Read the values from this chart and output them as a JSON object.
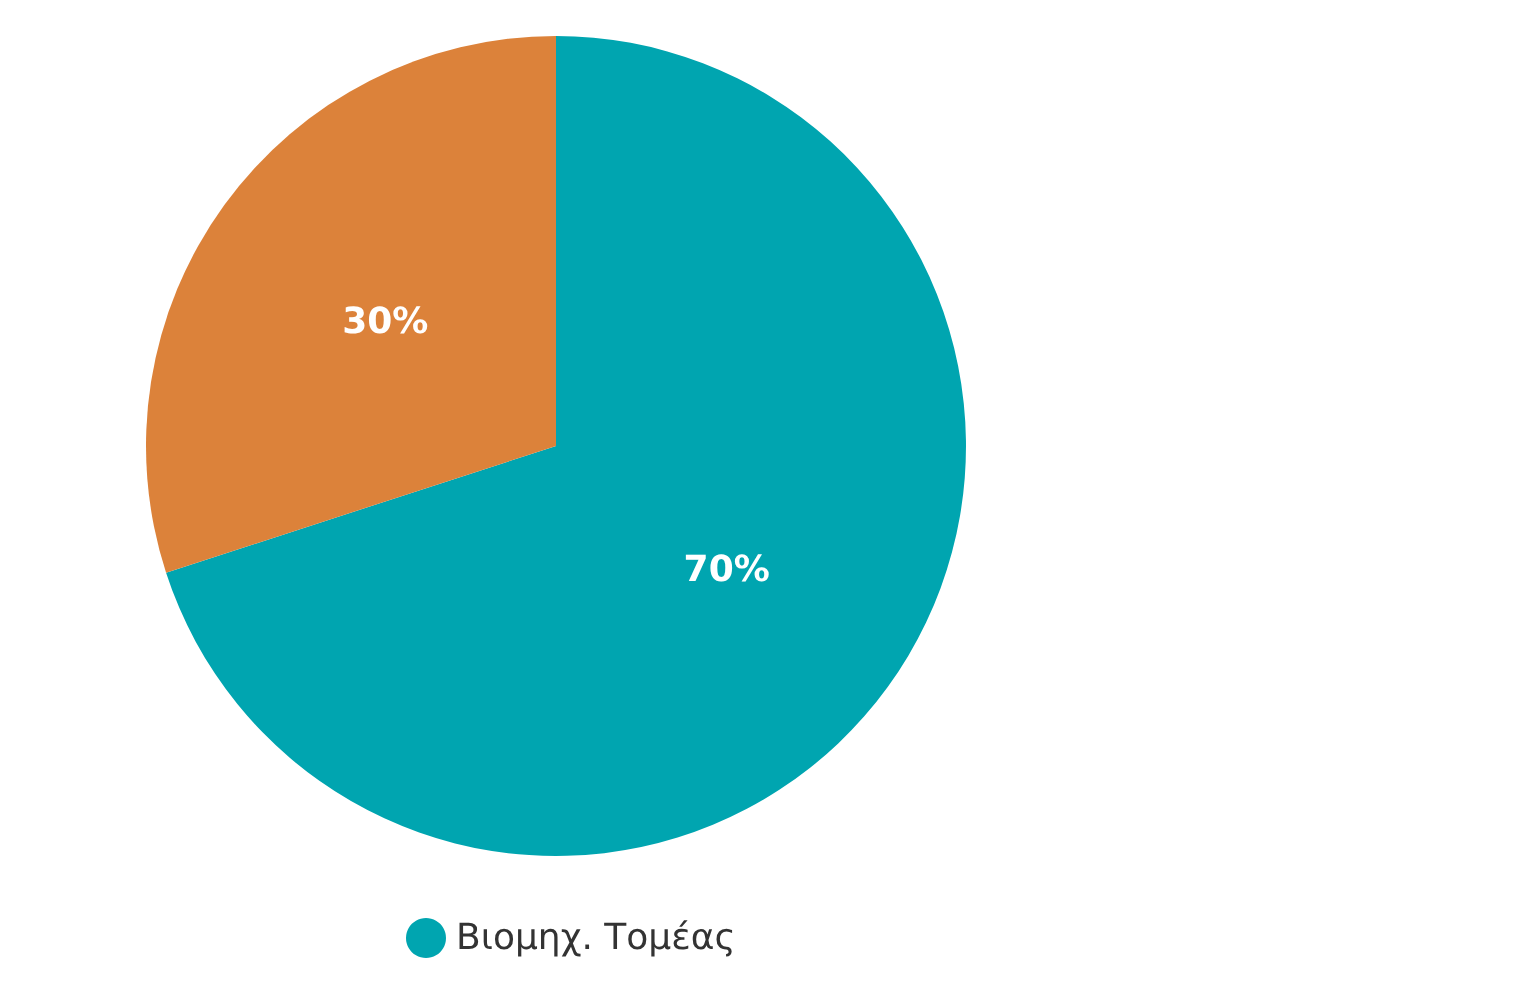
{
  "chart_data": {
    "type": "pie",
    "categories": [
      "Βιομηχ. Τομέας",
      null
    ],
    "values": [
      70,
      30
    ],
    "colors": [
      "#00a5b0",
      "#dc823a"
    ],
    "value_labels": [
      "70%",
      "30%"
    ],
    "legend": "bottom"
  }
}
